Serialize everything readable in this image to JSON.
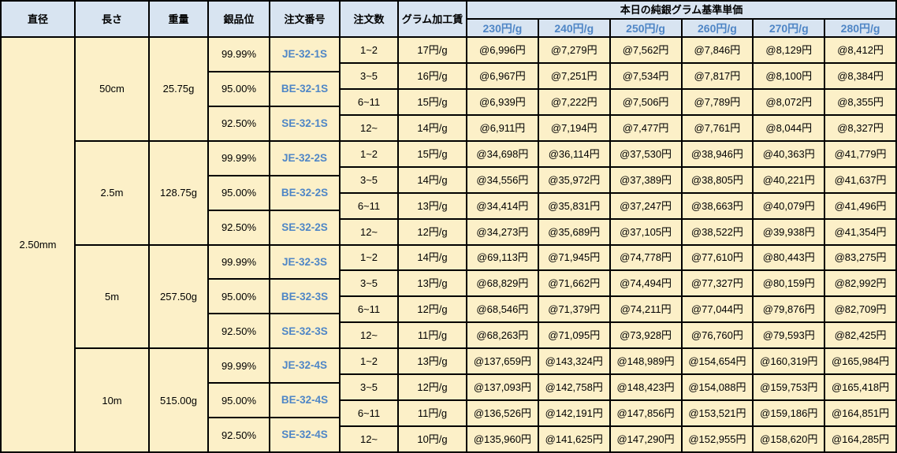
{
  "table": {
    "colors": {
      "header_bg": "#d8e4f1",
      "body_bg": "#fcf0c8",
      "accent_blue": "#4f86c6",
      "border": "#000000"
    },
    "headers": {
      "diameter": "直径",
      "length": "長さ",
      "weight": "重量",
      "purity": "銀品位",
      "order_no": "注文番号",
      "qty": "注文数",
      "fee": "グラム加工賃",
      "price_group": "本日の純銀グラム基準単価",
      "price_units": [
        "230円/g",
        "240円/g",
        "250円/g",
        "260円/g",
        "270円/g",
        "280円/g"
      ]
    },
    "diameter_value": "2.50mm",
    "blocks": [
      {
        "length": "50cm",
        "weight": "25.75g",
        "purities": [
          {
            "purity": "99.99%",
            "order_no": "JE-32-1S"
          },
          {
            "purity": "95.00%",
            "order_no": "BE-32-1S"
          },
          {
            "purity": "92.50%",
            "order_no": "SE-32-1S"
          }
        ],
        "rows": [
          {
            "qty": "1~2",
            "fee": "17円/g",
            "prices": [
              "@6,996円",
              "@7,279円",
              "@7,562円",
              "@7,846円",
              "@8,129円",
              "@8,412円"
            ]
          },
          {
            "qty": "3~5",
            "fee": "16円/g",
            "prices": [
              "@6,967円",
              "@7,251円",
              "@7,534円",
              "@7,817円",
              "@8,100円",
              "@8,384円"
            ]
          },
          {
            "qty": "6~11",
            "fee": "15円/g",
            "prices": [
              "@6,939円",
              "@7,222円",
              "@7,506円",
              "@7,789円",
              "@8,072円",
              "@8,355円"
            ]
          },
          {
            "qty": "12~",
            "fee": "14円/g",
            "prices": [
              "@6,911円",
              "@7,194円",
              "@7,477円",
              "@7,761円",
              "@8,044円",
              "@8,327円"
            ]
          }
        ]
      },
      {
        "length": "2.5m",
        "weight": "128.75g",
        "purities": [
          {
            "purity": "99.99%",
            "order_no": "JE-32-2S"
          },
          {
            "purity": "95.00%",
            "order_no": "BE-32-2S"
          },
          {
            "purity": "92.50%",
            "order_no": "SE-32-2S"
          }
        ],
        "rows": [
          {
            "qty": "1~2",
            "fee": "15円/g",
            "prices": [
              "@34,698円",
              "@36,114円",
              "@37,530円",
              "@38,946円",
              "@40,363円",
              "@41,779円"
            ]
          },
          {
            "qty": "3~5",
            "fee": "14円/g",
            "prices": [
              "@34,556円",
              "@35,972円",
              "@37,389円",
              "@38,805円",
              "@40,221円",
              "@41,637円"
            ]
          },
          {
            "qty": "6~11",
            "fee": "13円/g",
            "prices": [
              "@34,414円",
              "@35,831円",
              "@37,247円",
              "@38,663円",
              "@40,079円",
              "@41,496円"
            ]
          },
          {
            "qty": "12~",
            "fee": "12円/g",
            "prices": [
              "@34,273円",
              "@35,689円",
              "@37,105円",
              "@38,522円",
              "@39,938円",
              "@41,354円"
            ]
          }
        ]
      },
      {
        "length": "5m",
        "weight": "257.50g",
        "purities": [
          {
            "purity": "99.99%",
            "order_no": "JE-32-3S"
          },
          {
            "purity": "95.00%",
            "order_no": "BE-32-3S"
          },
          {
            "purity": "92.50%",
            "order_no": "SE-32-3S"
          }
        ],
        "rows": [
          {
            "qty": "1~2",
            "fee": "14円/g",
            "prices": [
              "@69,113円",
              "@71,945円",
              "@74,778円",
              "@77,610円",
              "@80,443円",
              "@83,275円"
            ]
          },
          {
            "qty": "3~5",
            "fee": "13円/g",
            "prices": [
              "@68,829円",
              "@71,662円",
              "@74,494円",
              "@77,327円",
              "@80,159円",
              "@82,992円"
            ]
          },
          {
            "qty": "6~11",
            "fee": "12円/g",
            "prices": [
              "@68,546円",
              "@71,379円",
              "@74,211円",
              "@77,044円",
              "@79,876円",
              "@82,709円"
            ]
          },
          {
            "qty": "12~",
            "fee": "11円/g",
            "prices": [
              "@68,263円",
              "@71,095円",
              "@73,928円",
              "@76,760円",
              "@79,593円",
              "@82,425円"
            ]
          }
        ]
      },
      {
        "length": "10m",
        "weight": "515.00g",
        "purities": [
          {
            "purity": "99.99%",
            "order_no": "JE-32-4S"
          },
          {
            "purity": "95.00%",
            "order_no": "BE-32-4S"
          },
          {
            "purity": "92.50%",
            "order_no": "SE-32-4S"
          }
        ],
        "rows": [
          {
            "qty": "1~2",
            "fee": "13円/g",
            "prices": [
              "@137,659円",
              "@143,324円",
              "@148,989円",
              "@154,654円",
              "@160,319円",
              "@165,984円"
            ]
          },
          {
            "qty": "3~5",
            "fee": "12円/g",
            "prices": [
              "@137,093円",
              "@142,758円",
              "@148,423円",
              "@154,088円",
              "@159,753円",
              "@165,418円"
            ]
          },
          {
            "qty": "6~11",
            "fee": "11円/g",
            "prices": [
              "@136,526円",
              "@142,191円",
              "@147,856円",
              "@153,521円",
              "@159,186円",
              "@164,851円"
            ]
          },
          {
            "qty": "12~",
            "fee": "10円/g",
            "prices": [
              "@135,960円",
              "@141,625円",
              "@147,290円",
              "@152,955円",
              "@158,620円",
              "@164,285円"
            ]
          }
        ]
      }
    ]
  }
}
